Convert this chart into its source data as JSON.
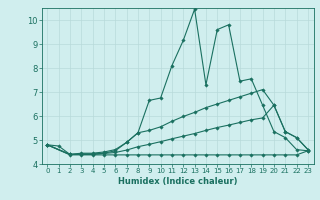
{
  "title": "",
  "xlabel": "Humidex (Indice chaleur)",
  "ylabel": "",
  "bg_color": "#d0eeee",
  "grid_color": "#b8dada",
  "line_color": "#1a7060",
  "xlim": [
    -0.5,
    23.5
  ],
  "ylim": [
    4,
    10.5
  ],
  "yticks": [
    4,
    5,
    6,
    7,
    8,
    9,
    10
  ],
  "xticks": [
    0,
    1,
    2,
    3,
    4,
    5,
    6,
    7,
    8,
    9,
    10,
    11,
    12,
    13,
    14,
    15,
    16,
    17,
    18,
    19,
    20,
    21,
    22,
    23
  ],
  "lines": [
    {
      "x": [
        0,
        1,
        2,
        3,
        4,
        5,
        6,
        7,
        8,
        9,
        10,
        11,
        12,
        13,
        14,
        15,
        16,
        17,
        18,
        19,
        20,
        21,
        22,
        23
      ],
      "y": [
        4.8,
        4.75,
        4.4,
        4.4,
        4.4,
        4.45,
        4.55,
        4.9,
        5.3,
        6.65,
        6.75,
        8.1,
        9.15,
        10.45,
        7.3,
        9.6,
        9.8,
        7.45,
        7.55,
        6.45,
        5.35,
        5.1,
        4.6,
        4.55
      ]
    },
    {
      "x": [
        0,
        2,
        3,
        4,
        5,
        6,
        7,
        8,
        9,
        10,
        11,
        12,
        13,
        14,
        15,
        16,
        17,
        18,
        19,
        20,
        21,
        22,
        23
      ],
      "y": [
        4.8,
        4.4,
        4.45,
        4.45,
        4.5,
        4.6,
        4.9,
        5.3,
        5.4,
        5.55,
        5.78,
        5.98,
        6.15,
        6.35,
        6.5,
        6.65,
        6.8,
        6.95,
        7.1,
        6.45,
        5.35,
        5.1,
        4.6
      ]
    },
    {
      "x": [
        0,
        2,
        3,
        4,
        5,
        6,
        7,
        8,
        9,
        10,
        11,
        12,
        13,
        14,
        15,
        16,
        17,
        18,
        19,
        20,
        21,
        22,
        23
      ],
      "y": [
        4.8,
        4.4,
        4.42,
        4.42,
        4.44,
        4.48,
        4.58,
        4.72,
        4.82,
        4.93,
        5.05,
        5.16,
        5.27,
        5.4,
        5.52,
        5.62,
        5.73,
        5.84,
        5.92,
        6.45,
        5.35,
        5.1,
        4.6
      ]
    },
    {
      "x": [
        0,
        2,
        3,
        4,
        5,
        6,
        7,
        8,
        9,
        10,
        11,
        12,
        13,
        14,
        15,
        16,
        17,
        18,
        19,
        20,
        21,
        22,
        23
      ],
      "y": [
        4.8,
        4.38,
        4.38,
        4.38,
        4.38,
        4.38,
        4.38,
        4.38,
        4.38,
        4.38,
        4.38,
        4.38,
        4.38,
        4.38,
        4.38,
        4.38,
        4.38,
        4.38,
        4.38,
        4.38,
        4.38,
        4.38,
        4.55
      ]
    }
  ]
}
